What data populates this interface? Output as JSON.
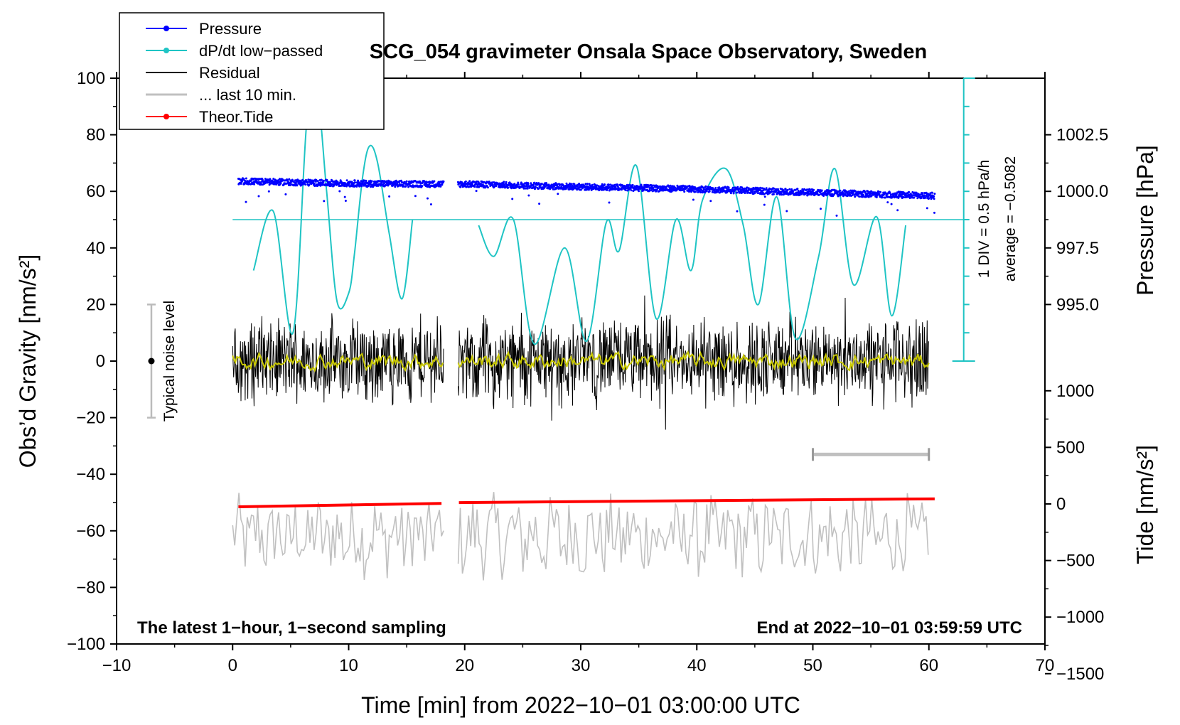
{
  "colors": {
    "pressure": "#0000ff",
    "dpdt": "#1fc4c4",
    "residual": "#000000",
    "last10": "#c0c0c0",
    "tide": "#ff0000",
    "smooth": "#c8c800",
    "noise_bar": "#bbbbbb"
  },
  "chart_data": {
    "type": "line",
    "title": "SCG_054 gravimeter Onsala Space Observatory, Sweden",
    "xlabel": "Time [min] from 2022−10−01 03:00:00 UTC",
    "ylabel_left": "Obs’d Gravity [nm/s²]",
    "ylabel_right_top": "Pressure [hPa]",
    "ylabel_right_bottom": "Tide [nm/s²]",
    "xlim": [
      -10,
      70
    ],
    "ylim": [
      -100,
      100
    ],
    "x_ticks": [
      "−10",
      "0",
      "10",
      "20",
      "30",
      "40",
      "50",
      "60",
      "70"
    ],
    "x_tick_values": [
      -10,
      0,
      10,
      20,
      30,
      40,
      50,
      60,
      70
    ],
    "y_ticks": [
      "100",
      "80",
      "60",
      "40",
      "20",
      "0",
      "−20",
      "−40",
      "−60",
      "−80",
      "−100"
    ],
    "y_tick_values": [
      100,
      80,
      60,
      40,
      20,
      0,
      -20,
      -40,
      -60,
      -80,
      -100
    ],
    "pressure_axis": {
      "ticks": [
        "1002.5",
        "1000.0",
        "997.5",
        "995.0"
      ],
      "tick_values": [
        1002.5,
        1000.0,
        997.5,
        995.0
      ],
      "gravity_at_1000": 60,
      "gravity_per_hPa": 8
    },
    "tide_axis": {
      "ticks": [
        "1000",
        "500",
        "0",
        "−500",
        "−1000",
        "−1500"
      ],
      "tick_values": [
        1000,
        500,
        0,
        -500,
        -1000,
        -1500
      ],
      "gravity_at_0": -50.5,
      "gravity_per_nms2": 0.04
    },
    "legend": [
      {
        "label": "Pressure",
        "color_key": "pressure",
        "marker": true
      },
      {
        "label": "dP/dt low−passed",
        "color_key": "dpdt",
        "marker": true
      },
      {
        "label": "Residual",
        "color_key": "residual",
        "marker": false
      },
      {
        "label": "... last 10 min.",
        "color_key": "last10",
        "marker": false
      },
      {
        "label": "Theor.Tide",
        "color_key": "tide",
        "marker": true
      }
    ],
    "legend_position": "top-left",
    "gap": [
      18.2,
      19.4
    ],
    "dpdt_baseline_y": 50,
    "pressure_series": {
      "x": [
        0.5,
        5,
        10,
        18,
        20,
        30,
        40,
        50,
        60.5
      ],
      "hPa": [
        1000.45,
        1000.4,
        1000.35,
        1000.32,
        1000.32,
        1000.2,
        1000.1,
        999.95,
        999.8
      ]
    },
    "dpdt_series": [
      {
        "x": [
          1.8,
          3.5,
          5.2,
          6.4,
          7.3,
          8.1,
          9,
          10,
          10.5,
          11.2,
          11.8,
          12.5,
          13.5,
          14.6,
          15.5
        ],
        "y": [
          32,
          53,
          10,
          85,
          94,
          60,
          21,
          24,
          38,
          65,
          76,
          70,
          45,
          22,
          50
        ]
      },
      {
        "x": [
          21.2,
          22.5,
          24.2,
          26,
          28.6,
          30.5,
          32.2,
          33.3,
          34.8,
          36.5,
          38.2,
          39.5,
          40.5,
          42.5,
          44,
          45.3,
          46.9,
          48.5,
          50.5,
          51.9,
          53.5,
          55.5,
          56.8,
          58.0
        ],
        "y": [
          48,
          37,
          50,
          6,
          40,
          7,
          49,
          39,
          69,
          15,
          50,
          32,
          57,
          68,
          48,
          20,
          58,
          8,
          37,
          68,
          27,
          51,
          16,
          48
        ]
      }
    ],
    "residual_series": {
      "x_range": [
        0,
        60
      ],
      "amplitude_typical": 12,
      "mean": 0
    },
    "smoothed_residual": {
      "x_range": [
        0,
        60
      ],
      "amplitude": 2.5
    },
    "last10_series": {
      "x_range": [
        0,
        60
      ],
      "center_y": -62,
      "amplitude": 8
    },
    "tide_series": {
      "x": [
        0.5,
        18,
        19.5,
        60.5
      ],
      "nms2": [
        -25,
        5,
        12,
        45
      ]
    },
    "annotations": {
      "noise_bar_label": "Typical noise level",
      "noise_bar": {
        "x": -7,
        "ymin": -20,
        "ymax": 20
      },
      "scale_label": "1 DIV = 0.5 hPa/h",
      "average_label": "average = −0.5082",
      "scale_bar": {
        "x": 63,
        "ymin": 0,
        "ymax": 100,
        "div_count": 10
      },
      "last10_bracket": {
        "x": [
          50,
          60
        ],
        "y": -33
      },
      "bottom_left_note": "The latest 1−hour, 1−second sampling",
      "bottom_right_note": "End at 2022−10−01 03:59:59 UTC"
    }
  }
}
